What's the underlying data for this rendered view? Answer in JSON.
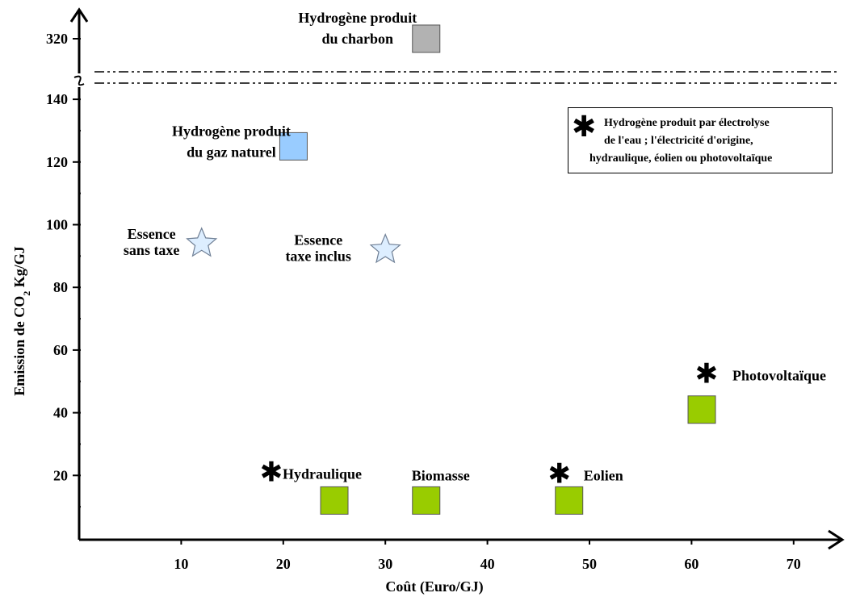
{
  "chart_data": {
    "type": "scatter",
    "xlabel": "Coût (Euro/GJ)",
    "xticks": [
      "10",
      "20",
      "30",
      "40",
      "50",
      "60",
      "70"
    ],
    "yticks_lower": [
      "20",
      "40",
      "60",
      "80",
      "100",
      "120",
      "140"
    ],
    "yticks_upper": [
      "320"
    ],
    "xlim": [
      0,
      70
    ],
    "ylim_lower": [
      0,
      145
    ],
    "y_axis_break": true,
    "grid": false,
    "points": [
      {
        "label": [
          "Hydrogène produit",
          "du charbon"
        ],
        "x": 34,
        "y": 320,
        "marker": "square",
        "color": "#b2b2b2",
        "starred": false
      },
      {
        "label": [
          "Hydrogène produit",
          "du gaz naturel"
        ],
        "x": 21,
        "y": 125,
        "marker": "square",
        "color": "#99ccff",
        "starred": false
      },
      {
        "label": [
          "Essence",
          "sans taxe"
        ],
        "x": 12,
        "y": 94,
        "marker": "star",
        "color": "#ddeeff",
        "starred": false
      },
      {
        "label": [
          "Essence",
          "taxe inclus"
        ],
        "x": 30,
        "y": 92,
        "marker": "star",
        "color": "#ddeeff",
        "starred": false
      },
      {
        "label": [
          "Photovoltaïque"
        ],
        "x": 61,
        "y": 41,
        "marker": "square",
        "color": "#99cc00",
        "starred": true
      },
      {
        "label": [
          "Hydraulique"
        ],
        "x": 25,
        "y": 12,
        "marker": "square",
        "color": "#99cc00",
        "starred": true
      },
      {
        "label": [
          "Biomasse"
        ],
        "x": 34,
        "y": 12,
        "marker": "square",
        "color": "#99cc00",
        "starred": false
      },
      {
        "label": [
          "Eolien"
        ],
        "x": 48,
        "y": 12,
        "marker": "square",
        "color": "#99cc00",
        "starred": true
      }
    ],
    "legend": {
      "placement": "top-right",
      "symbol": "✱",
      "lines": [
        "Hydrogène produit par électrolyse",
        "de  l'eau ; l'électricité d'origine,",
        "hydraulique,  éolien ou photovoltaïque"
      ]
    }
  }
}
